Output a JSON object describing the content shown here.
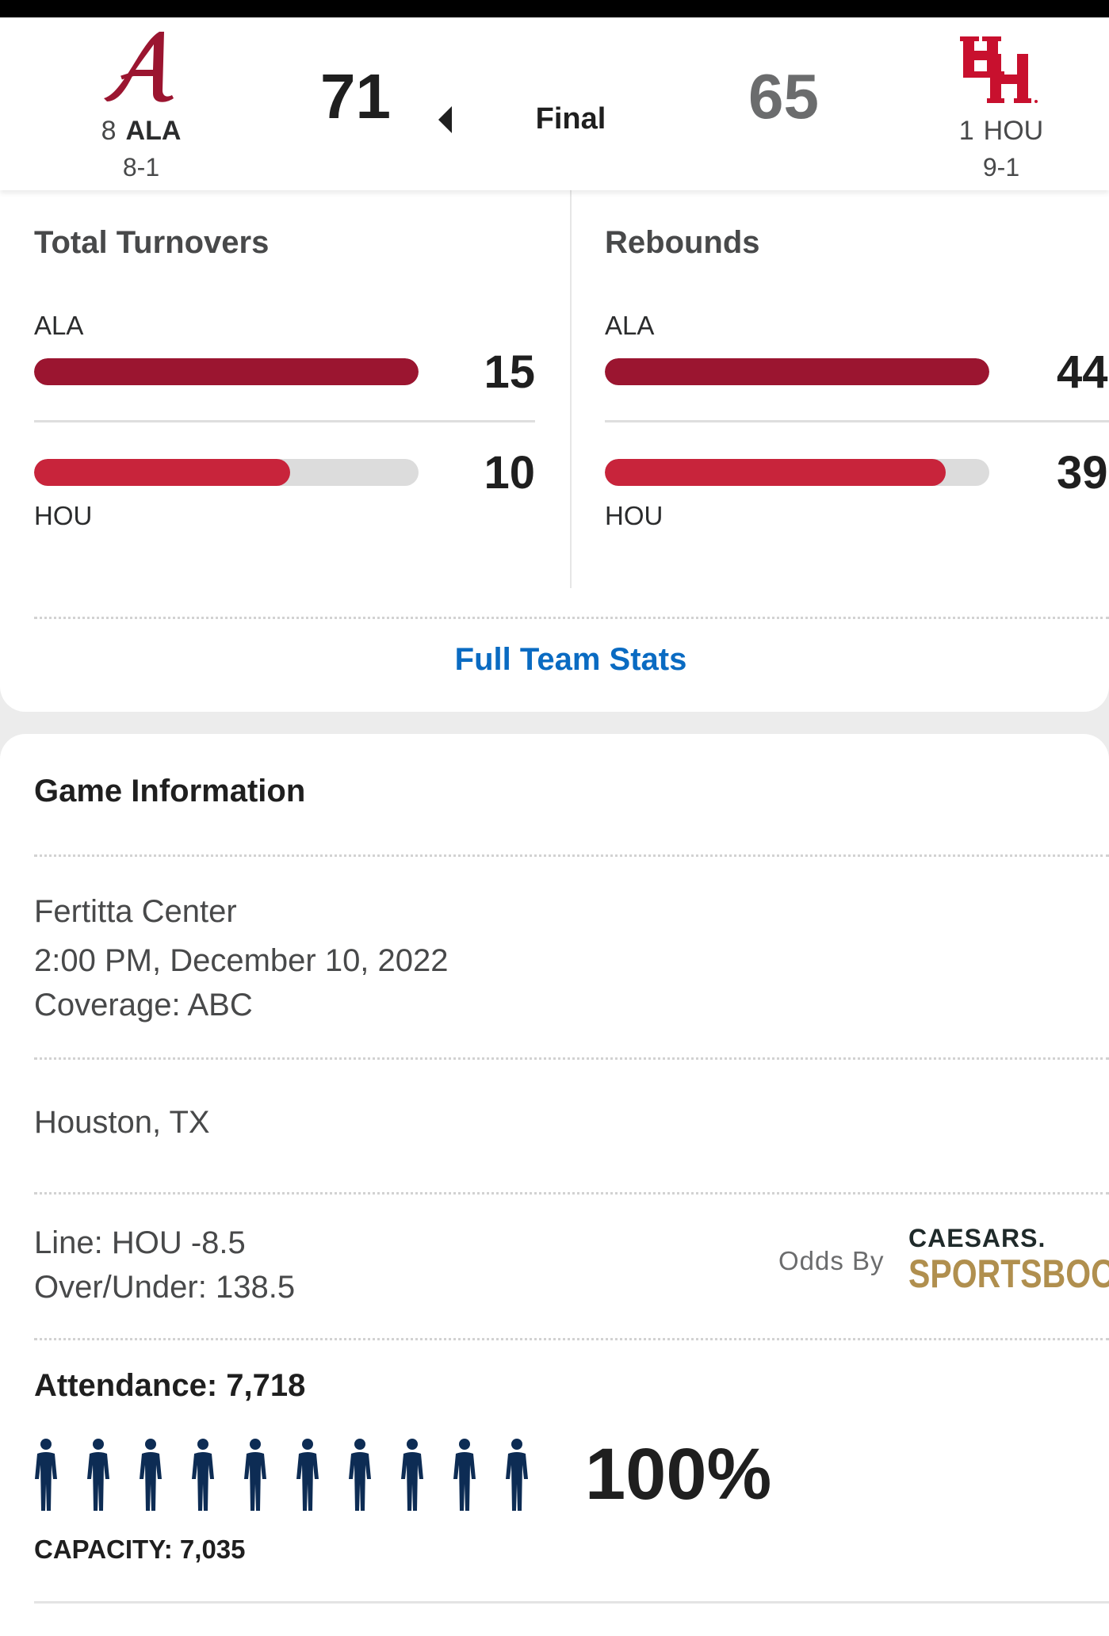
{
  "scoreboard": {
    "away": {
      "rank": "8",
      "abbr": "ALA",
      "record": "8-1",
      "score": "71",
      "color": "#9b1530"
    },
    "home": {
      "rank": "1",
      "abbr": "HOU",
      "record": "9-1",
      "score": "65",
      "color": "#c8102e"
    },
    "status": "Final"
  },
  "stats": [
    {
      "title": "Total Turnovers",
      "team1": {
        "label": "ALA",
        "value": "15",
        "fill": 1.0
      },
      "team2": {
        "label": "HOU",
        "value": "10",
        "fill": 0.667
      }
    },
    {
      "title": "Rebounds",
      "team1": {
        "label": "ALA",
        "value": "44",
        "fill": 1.0
      },
      "team2": {
        "label": "HOU",
        "value": "39",
        "fill": 0.886
      }
    }
  ],
  "full_stats_link": "Full Team Stats",
  "game_info": {
    "title": "Game Information",
    "venue": "Fertitta Center",
    "datetime": "2:00 PM, December 10, 2022",
    "coverage": "Coverage: ABC",
    "location": "Houston, TX",
    "line": "Line: HOU -8.5",
    "over_under": "Over/Under: 138.5",
    "odds_by": "Odds By",
    "odds_provider_top": "CAESARS.",
    "odds_provider_bottom": "SPORTSBOOK",
    "attendance": "Attendance: 7,718",
    "capacity_pct": "100%",
    "capacity_fill": 1.0,
    "capacity": "CAPACITY: 7,035",
    "person_count": 10,
    "person_color": "#0d2c54"
  }
}
